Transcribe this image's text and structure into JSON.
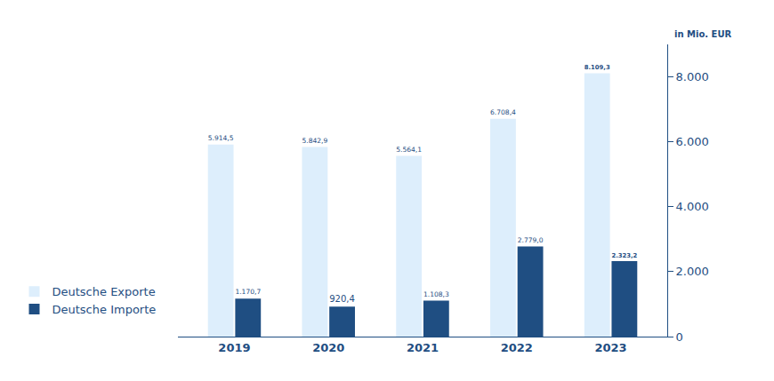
{
  "chart_data": {
    "type": "bar",
    "y_label": "in Mio. EUR",
    "categories": [
      "2019",
      "2020",
      "2021",
      "2022",
      "2023"
    ],
    "series": [
      {
        "name": "Deutsche Exporte",
        "color": "#ddeefc",
        "values": [
          5914.5,
          5842.9,
          5564.1,
          6708.4,
          8109.3
        ],
        "value_labels": [
          "5.914,5",
          "5.842,9",
          "5.564,1",
          "6.708,4",
          "8.109,3"
        ]
      },
      {
        "name": "Deutsche Importe",
        "color": "#1f4e82",
        "values": [
          1170.7,
          920.4,
          1108.3,
          2779.0,
          2323.2
        ],
        "value_labels": [
          "1.170,7",
          "920,4",
          "1.108,3",
          "2.779,0",
          "2.323,2"
        ]
      }
    ],
    "ylim": [
      0,
      9000
    ],
    "yticks": [
      0,
      {
        "value": 2000,
        "label": "2.000"
      },
      {
        "value": 4000,
        "label": "4.000"
      },
      {
        "value": 6000,
        "label": "6.000"
      },
      {
        "value": 8000,
        "label": "8.000"
      }
    ],
    "grid": false,
    "data_labels": true,
    "legend": "bottom left"
  }
}
